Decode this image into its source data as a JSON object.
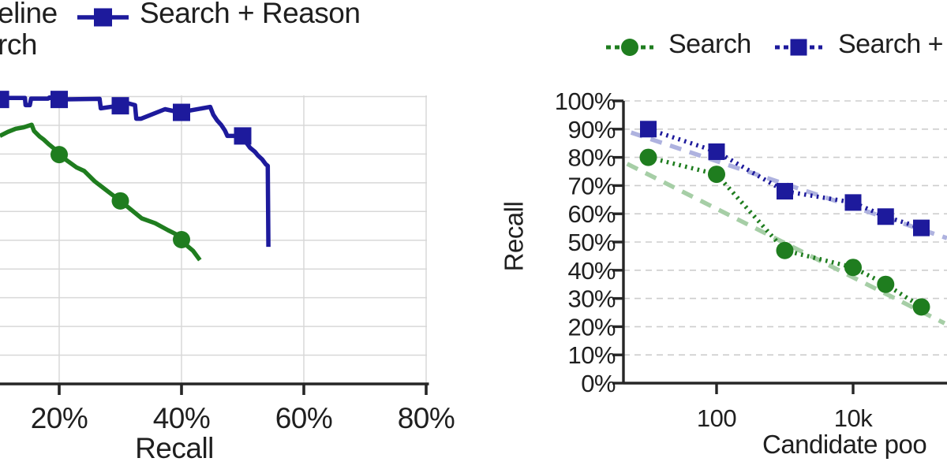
{
  "chart_data": [
    {
      "type": "line",
      "panel": "left",
      "title": "",
      "xlabel": "Recall",
      "ylabel": "",
      "x_axis_unit": "percent",
      "x_ticks": [
        {
          "label": "20%",
          "value": 20
        },
        {
          "label": "40%",
          "value": 40
        },
        {
          "label": "60%",
          "value": 60
        },
        {
          "label": "80%",
          "value": 80
        }
      ],
      "x_visible_range": [
        10.3,
        80.5
      ],
      "y_gridline_step_pct": 10,
      "grid": "solid-light",
      "legend": {
        "item1_fragment": "eline",
        "item2_fragment": "rch",
        "item3_label": "Search + Reason"
      },
      "series": [
        {
          "name": "Search + Reason",
          "color": "#1d1a9c",
          "marker": "square",
          "linestyle": "solid",
          "points": [
            [
              10.3,
              99.5
            ],
            [
              14.4,
              99.5
            ],
            [
              14.5,
              97.0
            ],
            [
              15.2,
              97.0
            ],
            [
              15.4,
              99.3
            ],
            [
              18.2,
              99.3
            ],
            [
              18.4,
              99.7
            ],
            [
              20,
              99.0
            ],
            [
              26.6,
              99.2
            ],
            [
              26.8,
              95.9
            ],
            [
              29.7,
              96.8
            ],
            [
              31.0,
              97.8
            ],
            [
              32.4,
              97.0
            ],
            [
              32.6,
              92.3
            ],
            [
              33.4,
              92.3
            ],
            [
              37.3,
              95.6
            ],
            [
              39.7,
              94.5
            ],
            [
              44.7,
              96.4
            ],
            [
              45.2,
              93.7
            ],
            [
              45.8,
              91.8
            ],
            [
              46.5,
              90.1
            ],
            [
              47.1,
              88.2
            ],
            [
              47.5,
              86.3
            ],
            [
              49.8,
              86.3
            ],
            [
              51.2,
              82.2
            ],
            [
              52.0,
              80.8
            ],
            [
              52.5,
              79.5
            ],
            [
              53.2,
              78.1
            ],
            [
              53.8,
              76.4
            ],
            [
              54.1,
              75.9
            ],
            [
              54.2,
              47.7
            ]
          ],
          "marker_points": [
            [
              10.4,
              99.0
            ],
            [
              20,
              99.0
            ],
            [
              30,
              96.8
            ],
            [
              40,
              94.5
            ],
            [
              50,
              86.3
            ]
          ]
        },
        {
          "name": "Search",
          "color": "#1f7d1f",
          "marker": "circle",
          "linestyle": "solid",
          "points": [
            [
              10.3,
              86.3
            ],
            [
              11.6,
              87.7
            ],
            [
              12.9,
              88.8
            ],
            [
              14.2,
              89.3
            ],
            [
              15.5,
              90.2
            ],
            [
              15.9,
              88.0
            ],
            [
              16.8,
              86.1
            ],
            [
              17.5,
              85.0
            ],
            [
              18.3,
              83.4
            ],
            [
              19.4,
              81.5
            ],
            [
              20,
              79.8
            ],
            [
              21.5,
              77.4
            ],
            [
              22.8,
              75.4
            ],
            [
              24.1,
              74.1
            ],
            [
              25.8,
              70.5
            ],
            [
              28.0,
              66.9
            ],
            [
              30,
              63.7
            ],
            [
              31.6,
              60.9
            ],
            [
              33.5,
              57.6
            ],
            [
              35.7,
              55.9
            ],
            [
              37.8,
              53.5
            ],
            [
              39.1,
              52.1
            ],
            [
              40,
              50.2
            ],
            [
              41,
              47.9
            ],
            [
              41.9,
              46.3
            ],
            [
              43,
              43.1
            ]
          ],
          "marker_points": [
            [
              20,
              79.8
            ],
            [
              30,
              63.7
            ],
            [
              40,
              50.2
            ]
          ]
        }
      ]
    },
    {
      "type": "line",
      "panel": "right",
      "title": "",
      "xlabel_fragment": "Candidate poo",
      "ylabel": "Recall",
      "x_scale": "log",
      "grid": "dashed-light",
      "ylim": [
        0,
        100
      ],
      "y_ticks": [
        {
          "label": "100%",
          "value": 100
        },
        {
          "label": "90%",
          "value": 90
        },
        {
          "label": "80%",
          "value": 80
        },
        {
          "label": "70%",
          "value": 70
        },
        {
          "label": "60%",
          "value": 60
        },
        {
          "label": "50%",
          "value": 50
        },
        {
          "label": "40%",
          "value": 40
        },
        {
          "label": "30%",
          "value": 30
        },
        {
          "label": "20%",
          "value": 20
        },
        {
          "label": "10%",
          "value": 10
        },
        {
          "label": "0%",
          "value": 0
        }
      ],
      "x_ticks": [
        {
          "label": "100",
          "value": 100
        },
        {
          "label": "10k",
          "value": 10000
        }
      ],
      "legend": [
        {
          "label": "Search",
          "marker": "circle",
          "color": "#1f7d1f"
        },
        {
          "label": "Search +",
          "marker": "square",
          "color": "#1d1a9c"
        }
      ],
      "series": [
        {
          "name": "Search",
          "color": "#1f7d1f",
          "marker": "circle",
          "linestyle": "dotted",
          "x": [
            10,
            100,
            1000,
            10000,
            30000,
            100000
          ],
          "values": [
            80,
            74,
            47,
            41,
            35,
            27
          ]
        },
        {
          "name": "Search +",
          "color": "#1d1a9c",
          "marker": "square",
          "linestyle": "dotted",
          "x": [
            10,
            100,
            1000,
            10000,
            30000,
            100000
          ],
          "values": [
            90,
            82,
            68,
            64,
            59,
            55
          ]
        }
      ],
      "trend_lines": [
        {
          "series": "Search",
          "color": "#a6cea6",
          "linestyle": "dashed",
          "points": [
            [
              4.9,
              77.7
            ],
            [
              219000,
              21.2
            ]
          ]
        },
        {
          "series": "Search +",
          "color": "#aeb2df",
          "linestyle": "dashed",
          "points": [
            [
              5.6,
              88.8
            ],
            [
              237000,
              51.4
            ]
          ]
        }
      ]
    }
  ]
}
